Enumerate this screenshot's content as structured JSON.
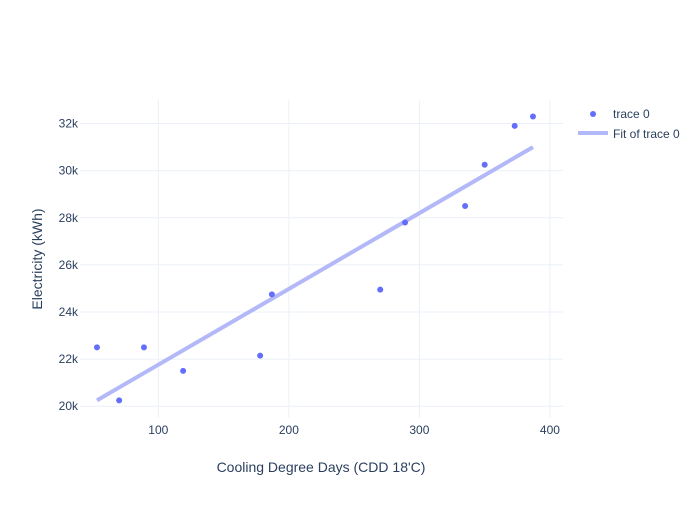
{
  "chart_data": {
    "type": "scatter",
    "title": "",
    "xlabel": "Cooling Degree Days (CDD 18'C)",
    "ylabel": "Electricity (kWh)",
    "xlim": [
      40,
      410
    ],
    "ylim": [
      19500,
      33000
    ],
    "x_ticks": [
      100,
      200,
      300,
      400
    ],
    "x_tick_labels": [
      "100",
      "200",
      "300",
      "400"
    ],
    "y_ticks": [
      20000,
      22000,
      24000,
      26000,
      28000,
      30000,
      32000
    ],
    "y_tick_labels": [
      "20k",
      "22k",
      "24k",
      "26k",
      "28k",
      "30k",
      "32k"
    ],
    "grid": true,
    "legend_position": "top-right",
    "series": [
      {
        "name": "trace 0",
        "mode": "markers",
        "color": "#636efa",
        "x": [
          53,
          70,
          89,
          119,
          178,
          187,
          270,
          289,
          335,
          350,
          373,
          387
        ],
        "y": [
          22500,
          20250,
          22500,
          21500,
          22150,
          24750,
          24950,
          27800,
          28500,
          30250,
          31900,
          32300
        ]
      },
      {
        "name": "Fit of trace 0",
        "mode": "line",
        "color": "#b3b8f8",
        "x": [
          53,
          387
        ],
        "y": [
          20250,
          31000
        ]
      }
    ]
  }
}
